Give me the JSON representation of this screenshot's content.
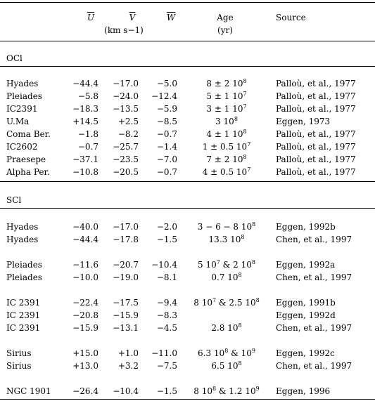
{
  "header": {
    "u": "U",
    "v": "V",
    "w": "W",
    "units": "(km s−1)",
    "age": "Age",
    "age_unit": "(yr)",
    "source": "Source"
  },
  "sections": [
    {
      "title": "OCl",
      "rows": [
        {
          "name": "Hyades",
          "u": "−44.4",
          "v": "−17.0",
          "w": "−5.0",
          "age": "8 ± 2 10^8",
          "source": "Palloù, et al., 1977"
        },
        {
          "name": "Pleiades",
          "u": "−5.8",
          "v": "−24.0",
          "w": "−12.4",
          "age": "5 ± 1 10^7",
          "source": "Palloù, et al., 1977"
        },
        {
          "name": "IC2391",
          "u": "−18.3",
          "v": "−13.5",
          "w": "−5.9",
          "age": "3 ± 1 10^7",
          "source": "Palloù, et al., 1977"
        },
        {
          "name": "U.Ma",
          "u": "+14.5",
          "v": "+2.5",
          "w": "−8.5",
          "age": "3 10^8",
          "source": "Eggen, 1973"
        },
        {
          "name": "Coma Ber.",
          "u": "−1.8",
          "v": "−8.2",
          "w": "−0.7",
          "age": "4 ± 1 10^8",
          "source": "Palloù, et al., 1977"
        },
        {
          "name": "IC2602",
          "u": "−0.7",
          "v": "−25.7",
          "w": "−1.4",
          "age": "1 ± 0.5 10^7",
          "source": "Palloù, et al., 1977"
        },
        {
          "name": "Praesepe",
          "u": "−37.1",
          "v": "−23.5",
          "w": "−7.0",
          "age": "7 ± 2 10^8",
          "source": "Palloù, et al., 1977"
        },
        {
          "name": "Alpha Per.",
          "u": "−10.8",
          "v": "−20.5",
          "w": "−0.7",
          "age": "4 ± 0.5 10^7",
          "source": "Palloù, et al., 1977"
        }
      ]
    },
    {
      "title": "SCl",
      "rows": [
        {
          "name": "Hyades",
          "u": "−40.0",
          "v": "−17.0",
          "w": "−2.0",
          "age": "3 − 6 − 8 10^8",
          "source": "Eggen, 1992b"
        },
        {
          "name": "Hyades",
          "u": "−44.4",
          "v": "−17.8",
          "w": "−1.5",
          "age": "13.3 10^8",
          "source": "Chen, et al., 1997"
        },
        {
          "name": "Pleiades",
          "u": "−11.6",
          "v": "−20.7",
          "w": "−10.4",
          "age": "5 10^7 & 2 10^8",
          "source": "Eggen, 1992a"
        },
        {
          "name": "Pleiades",
          "u": "−10.0",
          "v": "−19.0",
          "w": "−8.1",
          "age": "0.7 10^8",
          "source": "Chen, et al., 1997"
        },
        {
          "name": "IC 2391",
          "u": "−22.4",
          "v": "−17.5",
          "w": "−9.4",
          "age": "8 10^7 & 2.5 10^8",
          "source": "Eggen, 1991b"
        },
        {
          "name": "IC 2391",
          "u": "−20.8",
          "v": "−15.9",
          "w": "−8.3",
          "age": "",
          "source": "Eggen, 1992d"
        },
        {
          "name": "IC 2391",
          "u": "−15.9",
          "v": "−13.1",
          "w": "−4.5",
          "age": "2.8 10^8",
          "source": "Chen, et al., 1997"
        },
        {
          "name": "Sirius",
          "u": "+15.0",
          "v": "+1.0",
          "w": "−11.0",
          "age": "6.3 10^8 & 10^9",
          "source": "Eggen, 1992c"
        },
        {
          "name": "Sirius",
          "u": "+13.0",
          "v": "+3.2",
          "w": "−7.5",
          "age": "6.5 10^8",
          "source": "Chen, et al., 1997"
        },
        {
          "name": "NGC 1901",
          "u": "−26.4",
          "v": "−10.4",
          "w": "−1.5",
          "age": "8 10^8 & 1.2 10^9",
          "source": "Eggen, 1996"
        }
      ]
    }
  ]
}
